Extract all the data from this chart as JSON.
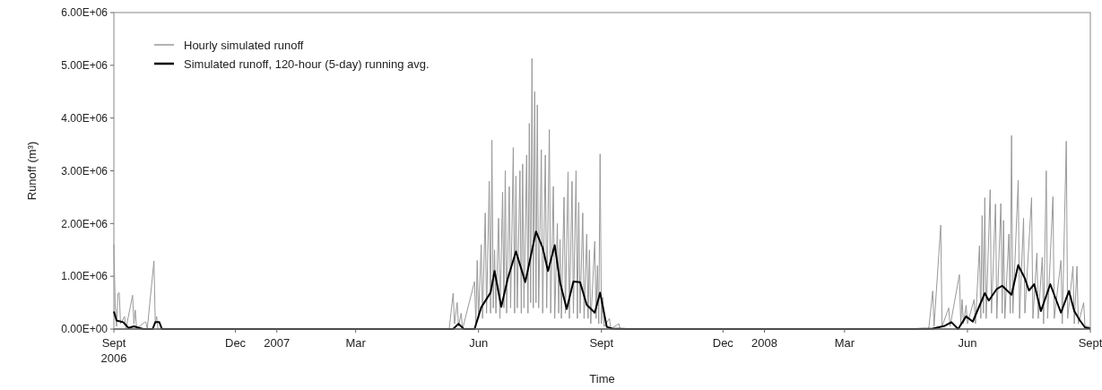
{
  "chart_data": {
    "type": "line",
    "xlabel": "Time",
    "ylabel": "Runoff (m³)",
    "xlim": [
      "2006-09-01",
      "2008-09-01"
    ],
    "xticks": [
      {
        "value": "2006-09-01",
        "label": "Sept\n2006"
      },
      {
        "value": "2006-12-01",
        "label": "Dec"
      },
      {
        "value": "2007-01-01",
        "label": "2007"
      },
      {
        "value": "2007-03-01",
        "label": "Mar"
      },
      {
        "value": "2007-06-01",
        "label": "Jun"
      },
      {
        "value": "2007-09-01",
        "label": "Sept"
      },
      {
        "value": "2007-12-01",
        "label": "Dec"
      },
      {
        "value": "2008-01-01",
        "label": "2008"
      },
      {
        "value": "2008-03-01",
        "label": "Mar"
      },
      {
        "value": "2008-06-01",
        "label": "Jun"
      },
      {
        "value": "2008-09-01",
        "label": "Sept"
      }
    ],
    "ylim": [
      0,
      6000000
    ],
    "yticks": [
      {
        "value": 0,
        "label": "0.00E+00"
      },
      {
        "value": 1000000,
        "label": "1.00E+06"
      },
      {
        "value": 2000000,
        "label": "2.00E+06"
      },
      {
        "value": 3000000,
        "label": "3.00E+06"
      },
      {
        "value": 4000000,
        "label": "4.00E+06"
      },
      {
        "value": 5000000,
        "label": "5.00E+06"
      },
      {
        "value": 6000000,
        "label": "6.00E+06"
      }
    ],
    "legend": "top left",
    "grid": false,
    "marker": "none",
    "line_style": "solid",
    "series": [
      {
        "name": "Hourly simulated runoff",
        "color": "#999999",
        "x": [
          "2006-09-01",
          "2006-09-02",
          "2006-09-03",
          "2006-09-04",
          "2006-09-05",
          "2006-09-06",
          "2006-09-09",
          "2006-09-10",
          "2006-09-15",
          "2006-09-16",
          "2006-09-17",
          "2006-09-18",
          "2006-09-24",
          "2006-09-25",
          "2006-09-26",
          "2006-10-01",
          "2006-10-02",
          "2006-10-03",
          "2006-10-04",
          "2007-05-10",
          "2007-05-13",
          "2007-05-14",
          "2007-05-16",
          "2007-05-17",
          "2007-05-19",
          "2007-05-20",
          "2007-05-29",
          "2007-05-30",
          "2007-05-31",
          "2007-06-01",
          "2007-06-03",
          "2007-06-04",
          "2007-06-06",
          "2007-06-07",
          "2007-06-09",
          "2007-06-10",
          "2007-06-11",
          "2007-06-12",
          "2007-06-13",
          "2007-06-14",
          "2007-06-16",
          "2007-06-17",
          "2007-06-19",
          "2007-06-20",
          "2007-06-21",
          "2007-06-22",
          "2007-06-24",
          "2007-06-25",
          "2007-06-27",
          "2007-06-28",
          "2007-06-29",
          "2007-06-30",
          "2007-07-02",
          "2007-07-03",
          "2007-07-04",
          "2007-07-05",
          "2007-07-07",
          "2007-07-08",
          "2007-07-09",
          "2007-07-10",
          "2007-07-11",
          "2007-07-12",
          "2007-07-13",
          "2007-07-14",
          "2007-07-15",
          "2007-07-16",
          "2007-07-18",
          "2007-07-19",
          "2007-07-21",
          "2007-07-22",
          "2007-07-24",
          "2007-07-25",
          "2007-07-27",
          "2007-07-28",
          "2007-07-30",
          "2007-07-31",
          "2007-08-01",
          "2007-08-02",
          "2007-08-04",
          "2007-08-05",
          "2007-08-07",
          "2007-08-08",
          "2007-08-10",
          "2007-08-11",
          "2007-08-13",
          "2007-08-14",
          "2007-08-15",
          "2007-08-16",
          "2007-08-18",
          "2007-08-19",
          "2007-08-21",
          "2007-08-22",
          "2007-08-23",
          "2007-08-24",
          "2007-08-27",
          "2007-08-28",
          "2007-08-29",
          "2007-08-30",
          "2007-08-31",
          "2007-09-01",
          "2007-09-02",
          "2007-09-03",
          "2007-09-07",
          "2007-09-08",
          "2007-09-14",
          "2007-09-15",
          "2008-05-03",
          "2008-05-06",
          "2008-05-07",
          "2008-05-12",
          "2008-05-13",
          "2008-05-18",
          "2008-05-19",
          "2008-05-26",
          "2008-05-27",
          "2008-05-28",
          "2008-05-29",
          "2008-05-31",
          "2008-06-01",
          "2008-06-06",
          "2008-06-07",
          "2008-06-10",
          "2008-06-11",
          "2008-06-12",
          "2008-06-13",
          "2008-06-14",
          "2008-06-15",
          "2008-06-18",
          "2008-06-19",
          "2008-06-22",
          "2008-06-23",
          "2008-06-26",
          "2008-06-27",
          "2008-06-28",
          "2008-06-29",
          "2008-07-02",
          "2008-07-03",
          "2008-07-04",
          "2008-07-05",
          "2008-07-09",
          "2008-07-10",
          "2008-07-13",
          "2008-07-14",
          "2008-07-19",
          "2008-07-20",
          "2008-07-23",
          "2008-07-24",
          "2008-07-27",
          "2008-07-28",
          "2008-07-30",
          "2008-07-31",
          "2008-08-04",
          "2008-08-05",
          "2008-08-10",
          "2008-08-11",
          "2008-08-14",
          "2008-08-15",
          "2008-08-19",
          "2008-08-20",
          "2008-08-22",
          "2008-08-23",
          "2008-08-27",
          "2008-08-28",
          "2008-08-31",
          "2008-09-01"
        ],
        "values": [
          1600000,
          440000,
          50000,
          670000,
          690000,
          100000,
          240000,
          0,
          640000,
          100000,
          360000,
          0,
          130000,
          130000,
          0,
          1290000,
          100000,
          240000,
          0,
          0,
          680000,
          100000,
          500000,
          50000,
          300000,
          0,
          900000,
          100000,
          1300000,
          200000,
          1600000,
          200000,
          2200000,
          300000,
          2800000,
          300000,
          3580000,
          400000,
          1500000,
          300000,
          2100000,
          200000,
          2600000,
          400000,
          3000000,
          300000,
          2700000,
          400000,
          3440000,
          300000,
          2900000,
          400000,
          3000000,
          300000,
          3130000,
          400000,
          3300000,
          300000,
          3900000,
          500000,
          5130000,
          400000,
          4500000,
          500000,
          4250000,
          400000,
          3400000,
          300000,
          3300000,
          400000,
          3780000,
          300000,
          2700000,
          200000,
          2000000,
          300000,
          1700000,
          200000,
          2500000,
          300000,
          2980000,
          200000,
          2800000,
          300000,
          3000000,
          200000,
          2400000,
          300000,
          2200000,
          200000,
          1800000,
          200000,
          1500000,
          100000,
          1660000,
          200000,
          1200000,
          100000,
          3320000,
          100000,
          600000,
          50000,
          200000,
          0,
          100000,
          0,
          0,
          720000,
          50000,
          1970000,
          50000,
          400000,
          50000,
          1030000,
          100000,
          560000,
          100000,
          450000,
          100000,
          560000,
          100000,
          1580000,
          200000,
          2150000,
          300000,
          2490000,
          200000,
          2640000,
          300000,
          2370000,
          200000,
          2380000,
          300000,
          2060000,
          200000,
          1800000,
          300000,
          3670000,
          300000,
          2820000,
          200000,
          2100000,
          300000,
          2490000,
          200000,
          1440000,
          200000,
          1360000,
          100000,
          3000000,
          200000,
          2510000,
          200000,
          1300000,
          100000,
          3560000,
          200000,
          1190000,
          100000,
          1190000,
          100000,
          500000,
          50000,
          50000,
          0
        ]
      },
      {
        "name": "Simulated runoff, 120-hour (5-day) running avg.",
        "color": "#000000",
        "x": [
          "2006-09-01",
          "2006-09-03",
          "2006-09-08",
          "2006-09-12",
          "2006-09-16",
          "2006-09-20",
          "2006-09-23",
          "2006-09-30",
          "2006-10-02",
          "2006-10-05",
          "2006-10-07",
          "2007-05-10",
          "2007-05-13",
          "2007-05-17",
          "2007-05-21",
          "2007-05-29",
          "2007-06-03",
          "2007-06-10",
          "2007-06-13",
          "2007-06-18",
          "2007-06-23",
          "2007-06-29",
          "2007-07-06",
          "2007-07-14",
          "2007-07-19",
          "2007-07-23",
          "2007-07-28",
          "2007-08-01",
          "2007-08-06",
          "2007-08-11",
          "2007-08-16",
          "2007-08-21",
          "2007-08-27",
          "2007-08-31",
          "2007-09-05",
          "2007-09-09",
          "2007-09-21",
          "2008-04-22",
          "2008-05-06",
          "2008-05-15",
          "2008-05-20",
          "2008-05-25",
          "2008-05-31",
          "2008-06-05",
          "2008-06-14",
          "2008-06-17",
          "2008-06-23",
          "2008-06-27",
          "2008-07-04",
          "2008-07-09",
          "2008-07-14",
          "2008-07-17",
          "2008-07-21",
          "2008-07-26",
          "2008-08-02",
          "2008-08-10",
          "2008-08-16",
          "2008-08-20",
          "2008-08-24",
          "2008-08-28",
          "2008-09-01"
        ],
        "values": [
          330000,
          160000,
          130000,
          20000,
          50000,
          20000,
          0,
          0,
          130000,
          130000,
          0,
          0,
          0,
          100000,
          0,
          0,
          410000,
          690000,
          1100000,
          420000,
          970000,
          1470000,
          890000,
          1850000,
          1540000,
          1100000,
          1590000,
          890000,
          380000,
          900000,
          890000,
          460000,
          310000,
          690000,
          40000,
          10000,
          0,
          0,
          10000,
          60000,
          130000,
          0,
          240000,
          140000,
          680000,
          540000,
          760000,
          820000,
          650000,
          1210000,
          960000,
          730000,
          850000,
          340000,
          850000,
          310000,
          720000,
          340000,
          170000,
          30000,
          10000
        ]
      }
    ]
  }
}
